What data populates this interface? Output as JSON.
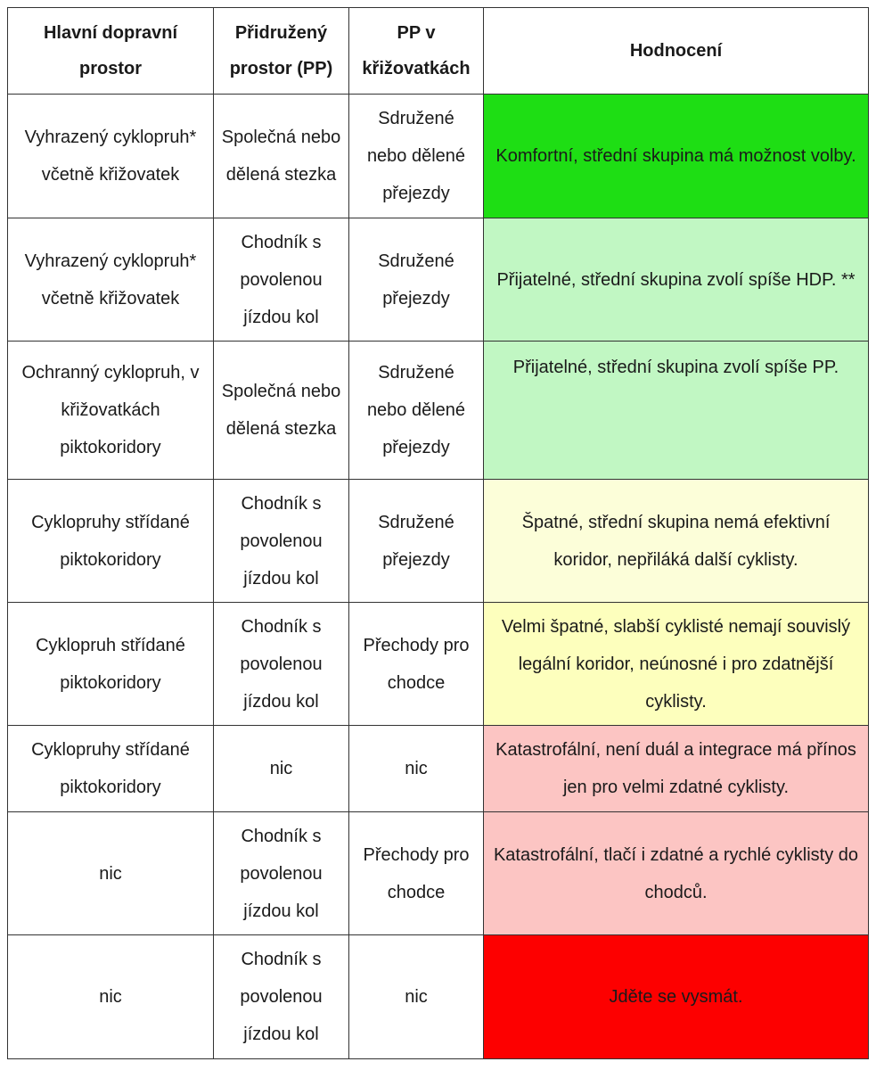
{
  "header": {
    "col1": "Hlavní dopravní prostor",
    "col2": "Přidružený prostor (PP)",
    "col3": "PP v křižovatkách",
    "col4": "Hodnocení"
  },
  "rows": [
    {
      "main": "Vyhrazený cyklopruh*  včetně křižovatek",
      "associated": "Společná nebo dělená stezka",
      "junctions": "Sdružené nebo dělené přejezdy",
      "rating": "Komfortní, střední skupina má možnost volby.",
      "color": "#1ede14"
    },
    {
      "main": "Vyhrazený cyklopruh* včetně křižovatek",
      "associated": "Chodník s povolenou jízdou kol",
      "junctions": "Sdružené přejezdy",
      "rating": "Přijatelné, střední skupina zvolí spíše HDP. **",
      "color": "#c1f7c3"
    },
    {
      "main": "Ochranný cyklopruh, v křižovatkách piktokoridory",
      "associated": "Společná nebo dělená stezka",
      "junctions": "Sdružené nebo dělené přejezdy",
      "rating": "Přijatelné, střední skupina zvolí spíše PP.",
      "color": "#c1f7c3"
    },
    {
      "main": "Cyklopruhy střídané piktokoridory",
      "associated": "Chodník s povolenou jízdou kol",
      "junctions": "Sdružené přejezdy",
      "rating": "Špatné, střední skupina nemá efektivní koridor, nepřiláká další cyklisty.",
      "color": "#fcfed9"
    },
    {
      "main": "Cyklopruh střídané piktokoridory",
      "associated": "Chodník s povolenou jízdou kol",
      "junctions": "Přechody pro chodce",
      "rating": "Velmi špatné, slabší cyklisté nemají souvislý legální koridor, neúnosné i pro zdatnější cyklisty.",
      "color": "#fdffbd"
    },
    {
      "main": "Cyklopruhy střídané piktokoridory",
      "associated": "nic",
      "junctions": "nic",
      "rating": "Katastrofální, není duál a integrace má přínos jen pro velmi zdatné cyklisty.",
      "color": "#fcc5c3"
    },
    {
      "main": "nic",
      "associated": "Chodník s povolenou jízdou kol",
      "junctions": "Přechody pro chodce",
      "rating": "Katastrofální, tlačí i zdatné a rychlé cyklisty do chodců.",
      "color": "#fcc5c3"
    },
    {
      "main": "nic",
      "associated": "Chodník s povolenou jízdou kol",
      "junctions": "nic",
      "rating": "Jděte se vysmát.",
      "color": "#fd0000"
    }
  ]
}
